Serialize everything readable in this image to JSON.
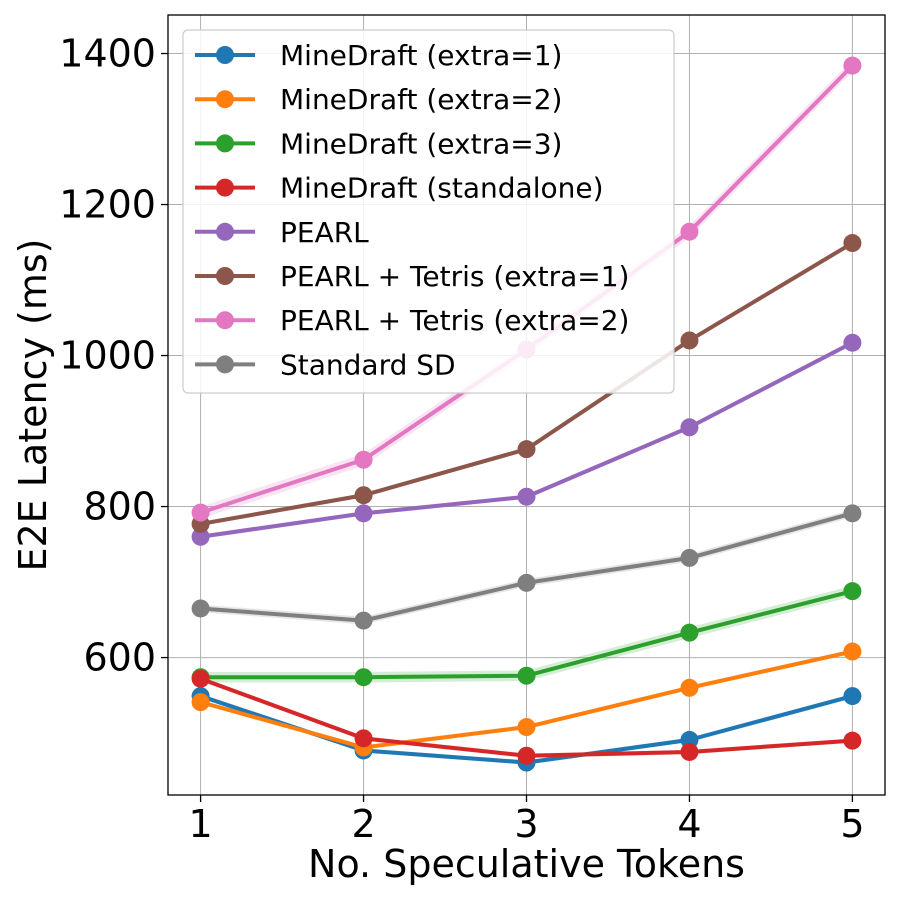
{
  "chart_data": {
    "type": "line",
    "title": "",
    "xlabel": "No. Speculative Tokens",
    "ylabel": "E2E Latency (ms)",
    "x": [
      1,
      2,
      3,
      4,
      5
    ],
    "xticks": [
      "1",
      "2",
      "3",
      "4",
      "5"
    ],
    "yticks": [
      "600",
      "800",
      "1000",
      "1200",
      "1400"
    ],
    "xlim": [
      0.8,
      5.2
    ],
    "ylim": [
      418,
      1451
    ],
    "grid": true,
    "legend_position": "top-left",
    "series": [
      {
        "name": "MineDraft (extra=1)",
        "color": "#1f77b4",
        "values": [
          549,
          477,
          461,
          491,
          549
        ],
        "band": 3
      },
      {
        "name": "MineDraft (extra=2)",
        "color": "#ff7f0e",
        "values": [
          541,
          481,
          508,
          560,
          608
        ],
        "band": 3
      },
      {
        "name": "MineDraft (extra=3)",
        "color": "#2ca02c",
        "values": [
          574,
          574,
          576,
          633,
          688
        ],
        "band": 7
      },
      {
        "name": "MineDraft (standalone)",
        "color": "#d62728",
        "values": [
          572,
          493,
          470,
          475,
          490
        ],
        "band": 3
      },
      {
        "name": "PEARL",
        "color": "#9467bd",
        "values": [
          760,
          791,
          813,
          905,
          1017
        ],
        "band": 3
      },
      {
        "name": "PEARL + Tetris (extra=1)",
        "color": "#8c564b",
        "values": [
          777,
          815,
          876,
          1020,
          1149
        ],
        "band": 3
      },
      {
        "name": "PEARL + Tetris (extra=2)",
        "color": "#e377c2",
        "values": [
          792,
          862,
          1008,
          1164,
          1384
        ],
        "band": 8
      },
      {
        "name": "Standard SD",
        "color": "#7f7f7f",
        "values": [
          665,
          649,
          699,
          732,
          791
        ],
        "band": 5
      }
    ]
  }
}
